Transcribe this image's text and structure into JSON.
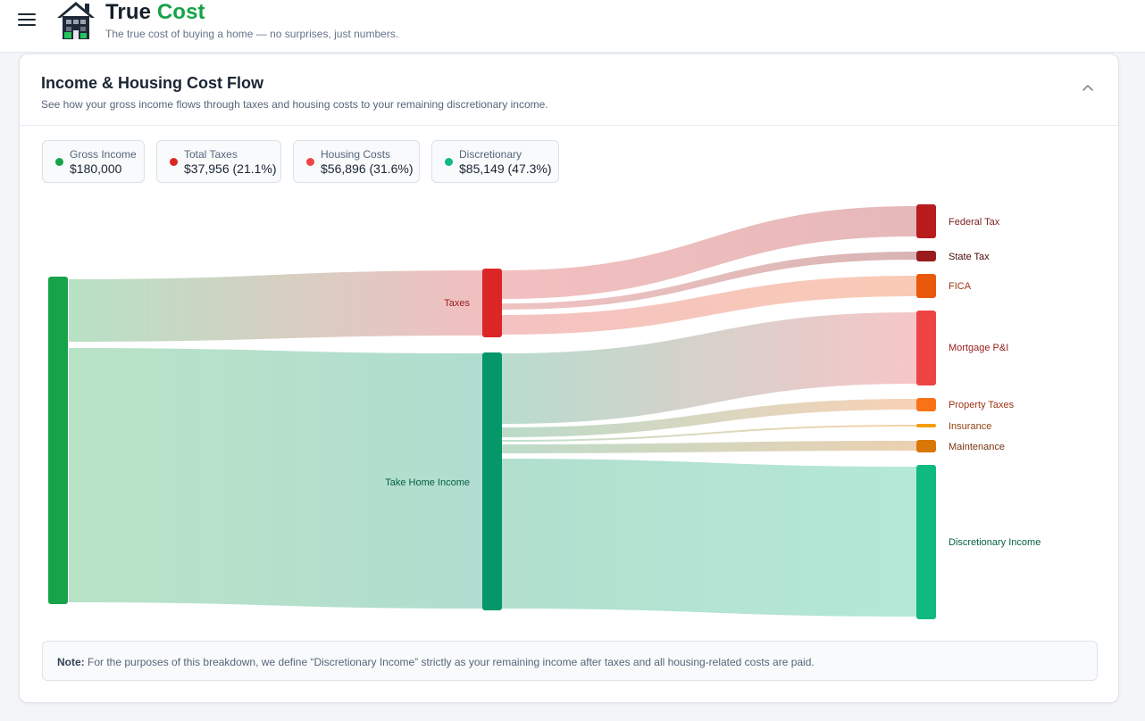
{
  "app": {
    "brand_part1": "True",
    "brand_part2": "Cost",
    "tagline": "The true cost of buying a home — no surprises, just numbers."
  },
  "card": {
    "title": "Income & Housing Cost Flow",
    "subtitle": "See how your gross income flows through taxes and housing costs to your remaining discretionary income."
  },
  "stats": [
    {
      "label": "Gross Income",
      "value": "$180,000",
      "color": "#16a34a"
    },
    {
      "label": "Total Taxes",
      "value": "$37,956 (21.1%)",
      "color": "#dc2626"
    },
    {
      "label": "Housing Costs",
      "value": "$56,896 (31.6%)",
      "color": "#ef4444"
    },
    {
      "label": "Discretionary",
      "value": "$85,149 (47.3%)",
      "color": "#10b981"
    }
  ],
  "sankey": {
    "nodes": {
      "taxes": "Taxes",
      "take_home": "Take Home Income",
      "federal": "Federal Tax",
      "state": "State Tax",
      "fica": "FICA",
      "mortgage": "Mortgage P&I",
      "property": "Property Taxes",
      "insurance": "Insurance",
      "maintenance": "Maintenance",
      "discretionary": "Discretionary Income"
    }
  },
  "note": {
    "label": "Note:",
    "text": " For the purposes of this breakdown, we define “Discretionary Income” strictly as your remaining income after taxes and all housing-related costs are paid."
  }
}
